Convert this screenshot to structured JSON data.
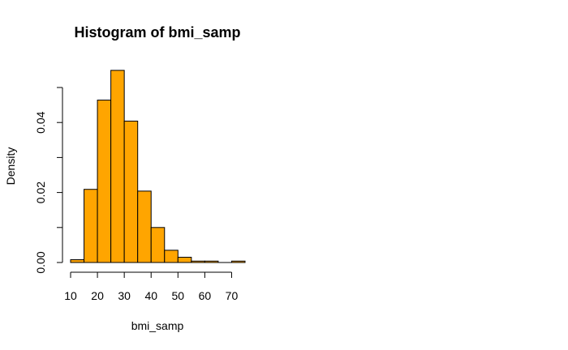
{
  "chart_data": {
    "type": "bar",
    "title": "Histogram of bmi_samp",
    "xlabel": "bmi_samp",
    "ylabel": "Density",
    "bar_color": "#FFA500",
    "bin_edges": [
      10,
      15,
      20,
      25,
      30,
      35,
      40,
      45,
      50,
      55,
      60,
      65,
      70,
      75
    ],
    "values": [
      0.0008,
      0.0209,
      0.0464,
      0.0549,
      0.0404,
      0.0204,
      0.01,
      0.0035,
      0.0015,
      0.0004,
      0.0004,
      0.0,
      0.0004
    ],
    "xlim": [
      10,
      75
    ],
    "ylim": [
      0,
      0.05
    ],
    "x_ticks": [
      10,
      20,
      30,
      40,
      50,
      60,
      70
    ],
    "y_ticks": [
      0.0,
      0.01,
      0.02,
      0.03,
      0.04,
      0.05
    ],
    "y_tick_labels": [
      "0.00",
      "",
      "0.02",
      "",
      "0.04",
      ""
    ]
  }
}
